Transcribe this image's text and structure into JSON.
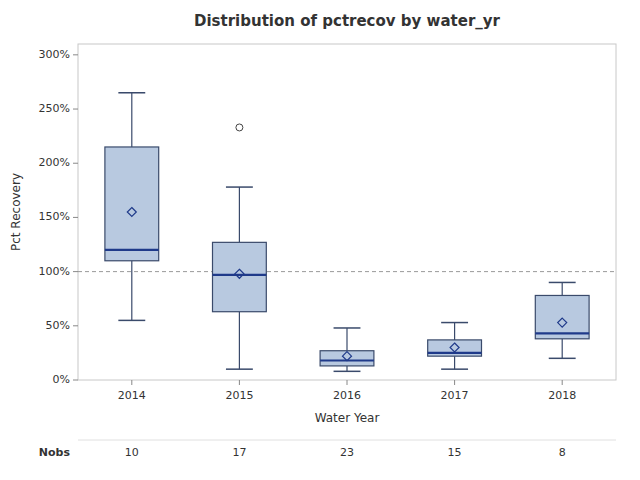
{
  "chart_data": {
    "type": "box",
    "title": "Distribution of pctrecov by water_yr",
    "x_label": "Water Year",
    "y_label": "Pct Recovery",
    "categories": [
      "2014",
      "2015",
      "2016",
      "2017",
      "2018"
    ],
    "boxes": [
      {
        "whislo": 55,
        "q1": 110,
        "med": 120,
        "q3": 215,
        "whishi": 265,
        "mean": 155,
        "fliers": []
      },
      {
        "whislo": 10,
        "q1": 63,
        "med": 97,
        "q3": 127,
        "whishi": 178,
        "mean": 98,
        "fliers": [
          233
        ]
      },
      {
        "whislo": 8,
        "q1": 13,
        "med": 18,
        "q3": 27,
        "whishi": 48,
        "mean": 22,
        "fliers": []
      },
      {
        "whislo": 10,
        "q1": 22,
        "med": 25,
        "q3": 37,
        "whishi": 53,
        "mean": 30,
        "fliers": []
      },
      {
        "whislo": 20,
        "q1": 38,
        "med": 43,
        "q3": 78,
        "whishi": 90,
        "mean": 53,
        "fliers": []
      }
    ],
    "nobs_label": "Nobs",
    "nobs": [
      10,
      17,
      23,
      15,
      8
    ],
    "reference_line": {
      "value": 100,
      "color": "#999999"
    },
    "color": "#b8c9e0",
    "ylim": [
      0,
      310
    ],
    "yticks": [
      {
        "value": 0,
        "label": "0%"
      },
      {
        "value": 50,
        "label": "50%"
      },
      {
        "value": 100,
        "label": "100%"
      },
      {
        "value": 150,
        "label": "150%"
      },
      {
        "value": 200,
        "label": "200%"
      },
      {
        "value": 250,
        "label": "250%"
      },
      {
        "value": 300,
        "label": "300%"
      }
    ],
    "grid": false
  }
}
